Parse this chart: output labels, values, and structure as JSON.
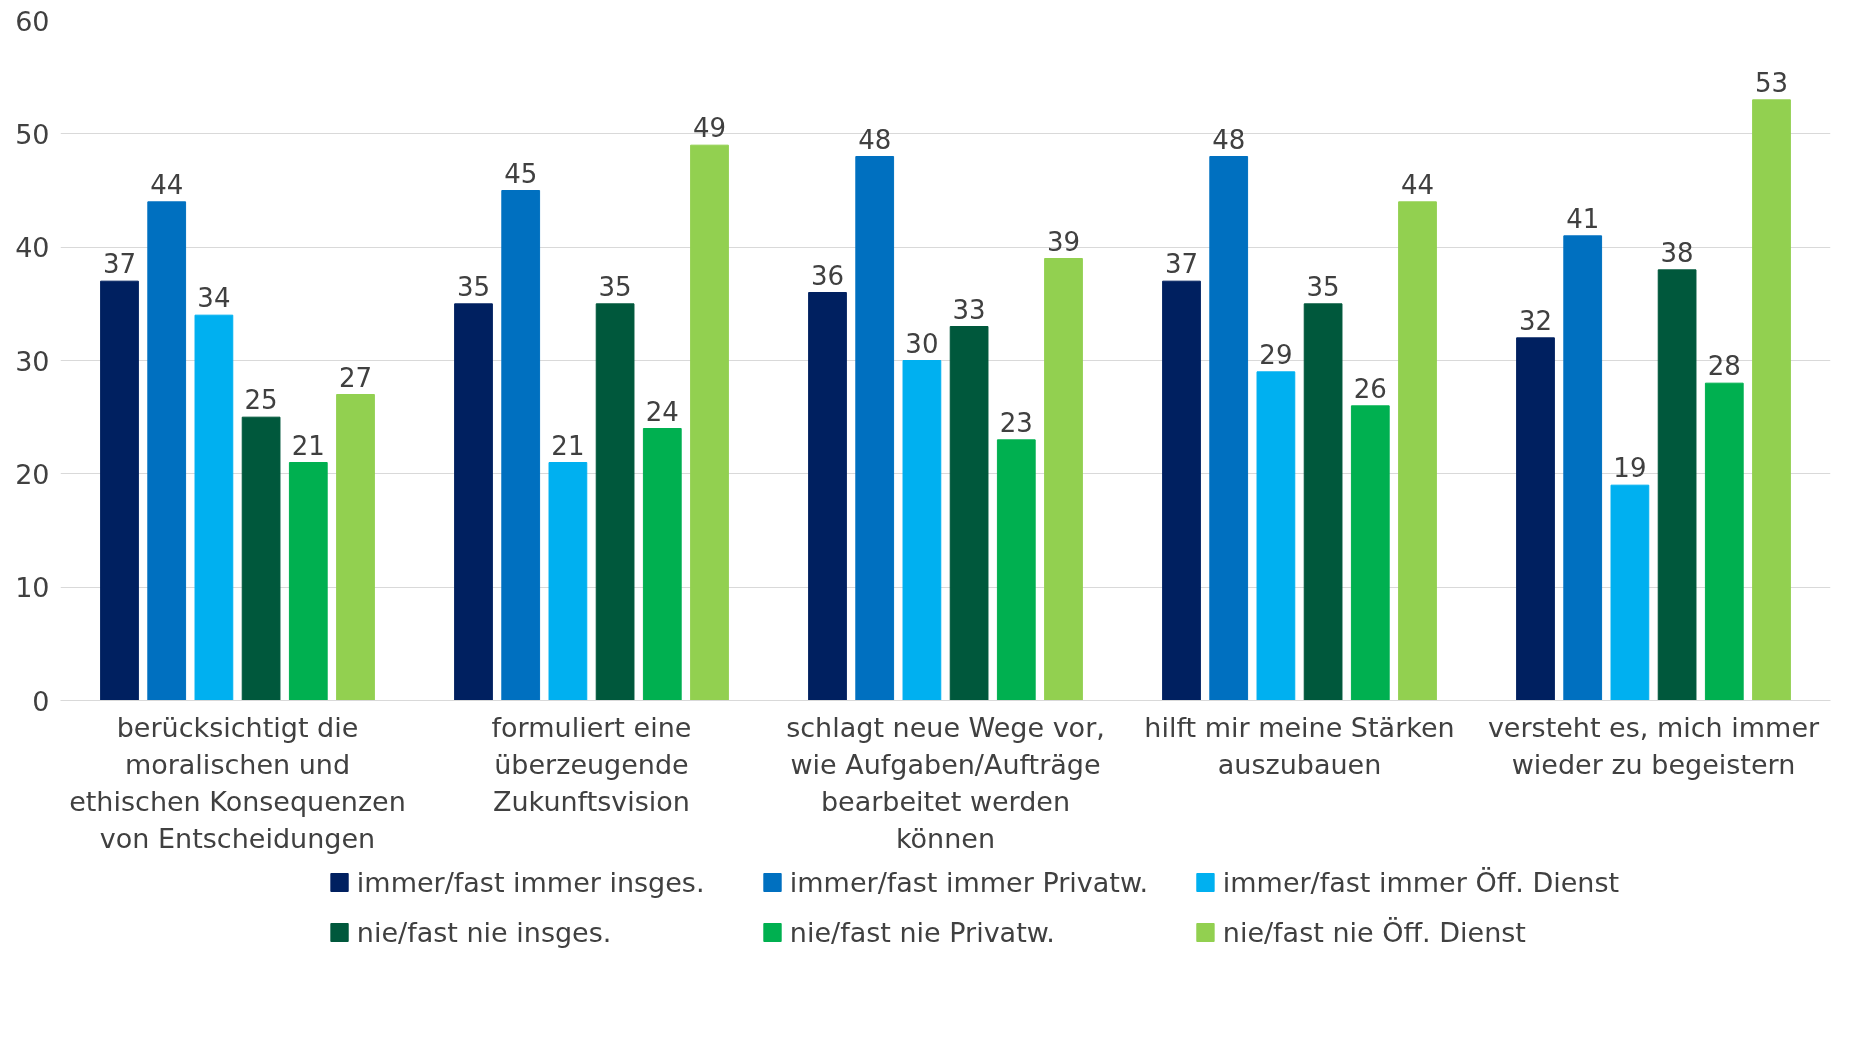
{
  "chart_data": {
    "type": "bar",
    "categories": [
      "berücksichtigt die moralischen und ethischen Konsequenzen von Entscheidungen",
      "formuliert eine überzeugende Zukunftsvision",
      "schlagt neue Wege vor, wie Aufgaben/Aufträge bearbeitet werden können",
      "hilft mir meine Stärken auszubauen",
      "versteht es, mich immer wieder zu begeistern"
    ],
    "series": [
      {
        "name": "immer/fast immer insges.",
        "color": "#002060",
        "values": [
          37,
          35,
          36,
          37,
          32
        ]
      },
      {
        "name": "immer/fast immer Privatw.",
        "color": "#0070c0",
        "values": [
          44,
          45,
          48,
          48,
          41
        ]
      },
      {
        "name": "immer/fast immer Öff. Dienst",
        "color": "#00b0f0",
        "values": [
          34,
          21,
          30,
          29,
          19
        ]
      },
      {
        "name": "nie/fast nie insges.",
        "color": "#00583c",
        "values": [
          25,
          35,
          33,
          35,
          38
        ]
      },
      {
        "name": "nie/fast nie Privatw.",
        "color": "#00b050",
        "values": [
          21,
          24,
          23,
          26,
          28
        ]
      },
      {
        "name": "nie/fast nie Öff. Dienst",
        "color": "#92d050",
        "values": [
          27,
          49,
          39,
          44,
          53
        ]
      }
    ],
    "ylim": [
      0,
      60
    ],
    "yticks": [
      0,
      10,
      20,
      30,
      40,
      50,
      60
    ],
    "grid": "y",
    "data_labels": true,
    "legend": "bottom"
  }
}
